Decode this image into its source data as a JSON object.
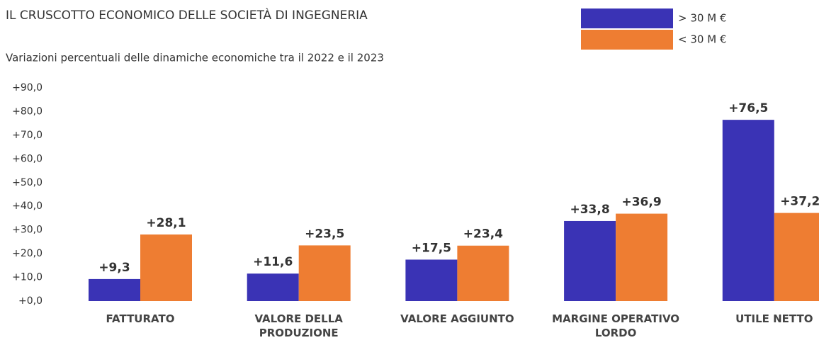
{
  "chart_data": {
    "type": "bar",
    "title": "IL CRUSCOTTO ECONOMICO DELLE SOCIETÀ DI INGEGNERIA",
    "subtitle": "Variazioni percentuali delle dinamiche economiche tra il 2022 e il 2023",
    "categories": [
      "FATTURATO",
      "VALORE DELLA PRODUZIONE",
      "VALORE AGGIUNTO",
      "MARGINE OPERATIVO LORDO",
      "UTILE NETTO"
    ],
    "series": [
      {
        "name": "> 30 M €",
        "color": "#3a33b5",
        "values": [
          9.3,
          11.6,
          17.5,
          33.8,
          76.5
        ],
        "value_labels": [
          "+9,3",
          "+11,6",
          "+17,5",
          "+33,8",
          "+76,5"
        ]
      },
      {
        "name": "< 30 M €",
        "color": "#ee7d32",
        "values": [
          28.1,
          23.5,
          23.4,
          36.9,
          37.2
        ],
        "value_labels": [
          "+28,1",
          "+23,5",
          "+23,4",
          "+36,9",
          "+37,2"
        ]
      }
    ],
    "ylim": [
      0,
      90
    ],
    "yticks": [
      {
        "value": 0,
        "label": "+0,0"
      },
      {
        "value": 10,
        "label": "+10,0"
      },
      {
        "value": 20,
        "label": "+20,0"
      },
      {
        "value": 30,
        "label": "+30,0"
      },
      {
        "value": 40,
        "label": "+40,0"
      },
      {
        "value": 50,
        "label": "+50,0"
      },
      {
        "value": 60,
        "label": "+60,0"
      },
      {
        "value": 70,
        "label": "+70,0"
      },
      {
        "value": 80,
        "label": "+80,0"
      },
      {
        "value": 90,
        "label": "+90,0"
      }
    ],
    "grid": false,
    "legend": "top-right"
  }
}
